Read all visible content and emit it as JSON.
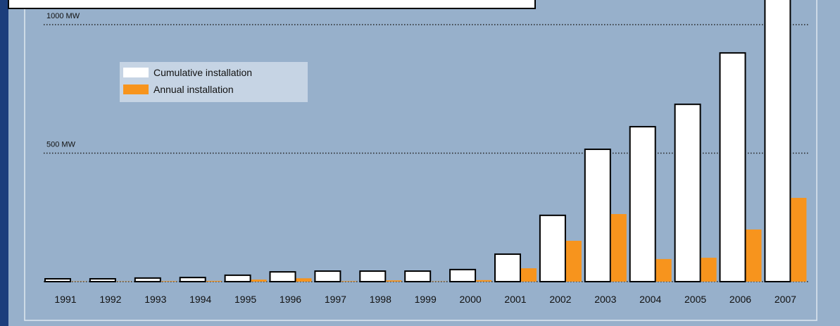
{
  "chart_data": {
    "type": "bar",
    "categories": [
      "1991",
      "1992",
      "1993",
      "1994",
      "1995",
      "1996",
      "1997",
      "1998",
      "1999",
      "2000",
      "2001",
      "2002",
      "2003",
      "2004",
      "2005",
      "2006",
      "2007"
    ],
    "series": [
      {
        "name": "Cumulative installation",
        "color": "#ffffff",
        "values": [
          11,
          11,
          14,
          16,
          25,
          38,
          41,
          41,
          41,
          47,
          107,
          258,
          515,
          603,
          690,
          890,
          1150
        ]
      },
      {
        "name": "Annual installation",
        "color": "#f7941d",
        "values": [
          1,
          1,
          2,
          3,
          8,
          13,
          2,
          5,
          1,
          6,
          52,
          159,
          263,
          88,
          93,
          203,
          326
        ]
      }
    ],
    "ylim": [
      0,
      1096
    ],
    "yticks": [
      {
        "value": 500,
        "label": "500 MW"
      },
      {
        "value": 1000,
        "label": "1000 MW"
      }
    ],
    "grid": true
  }
}
